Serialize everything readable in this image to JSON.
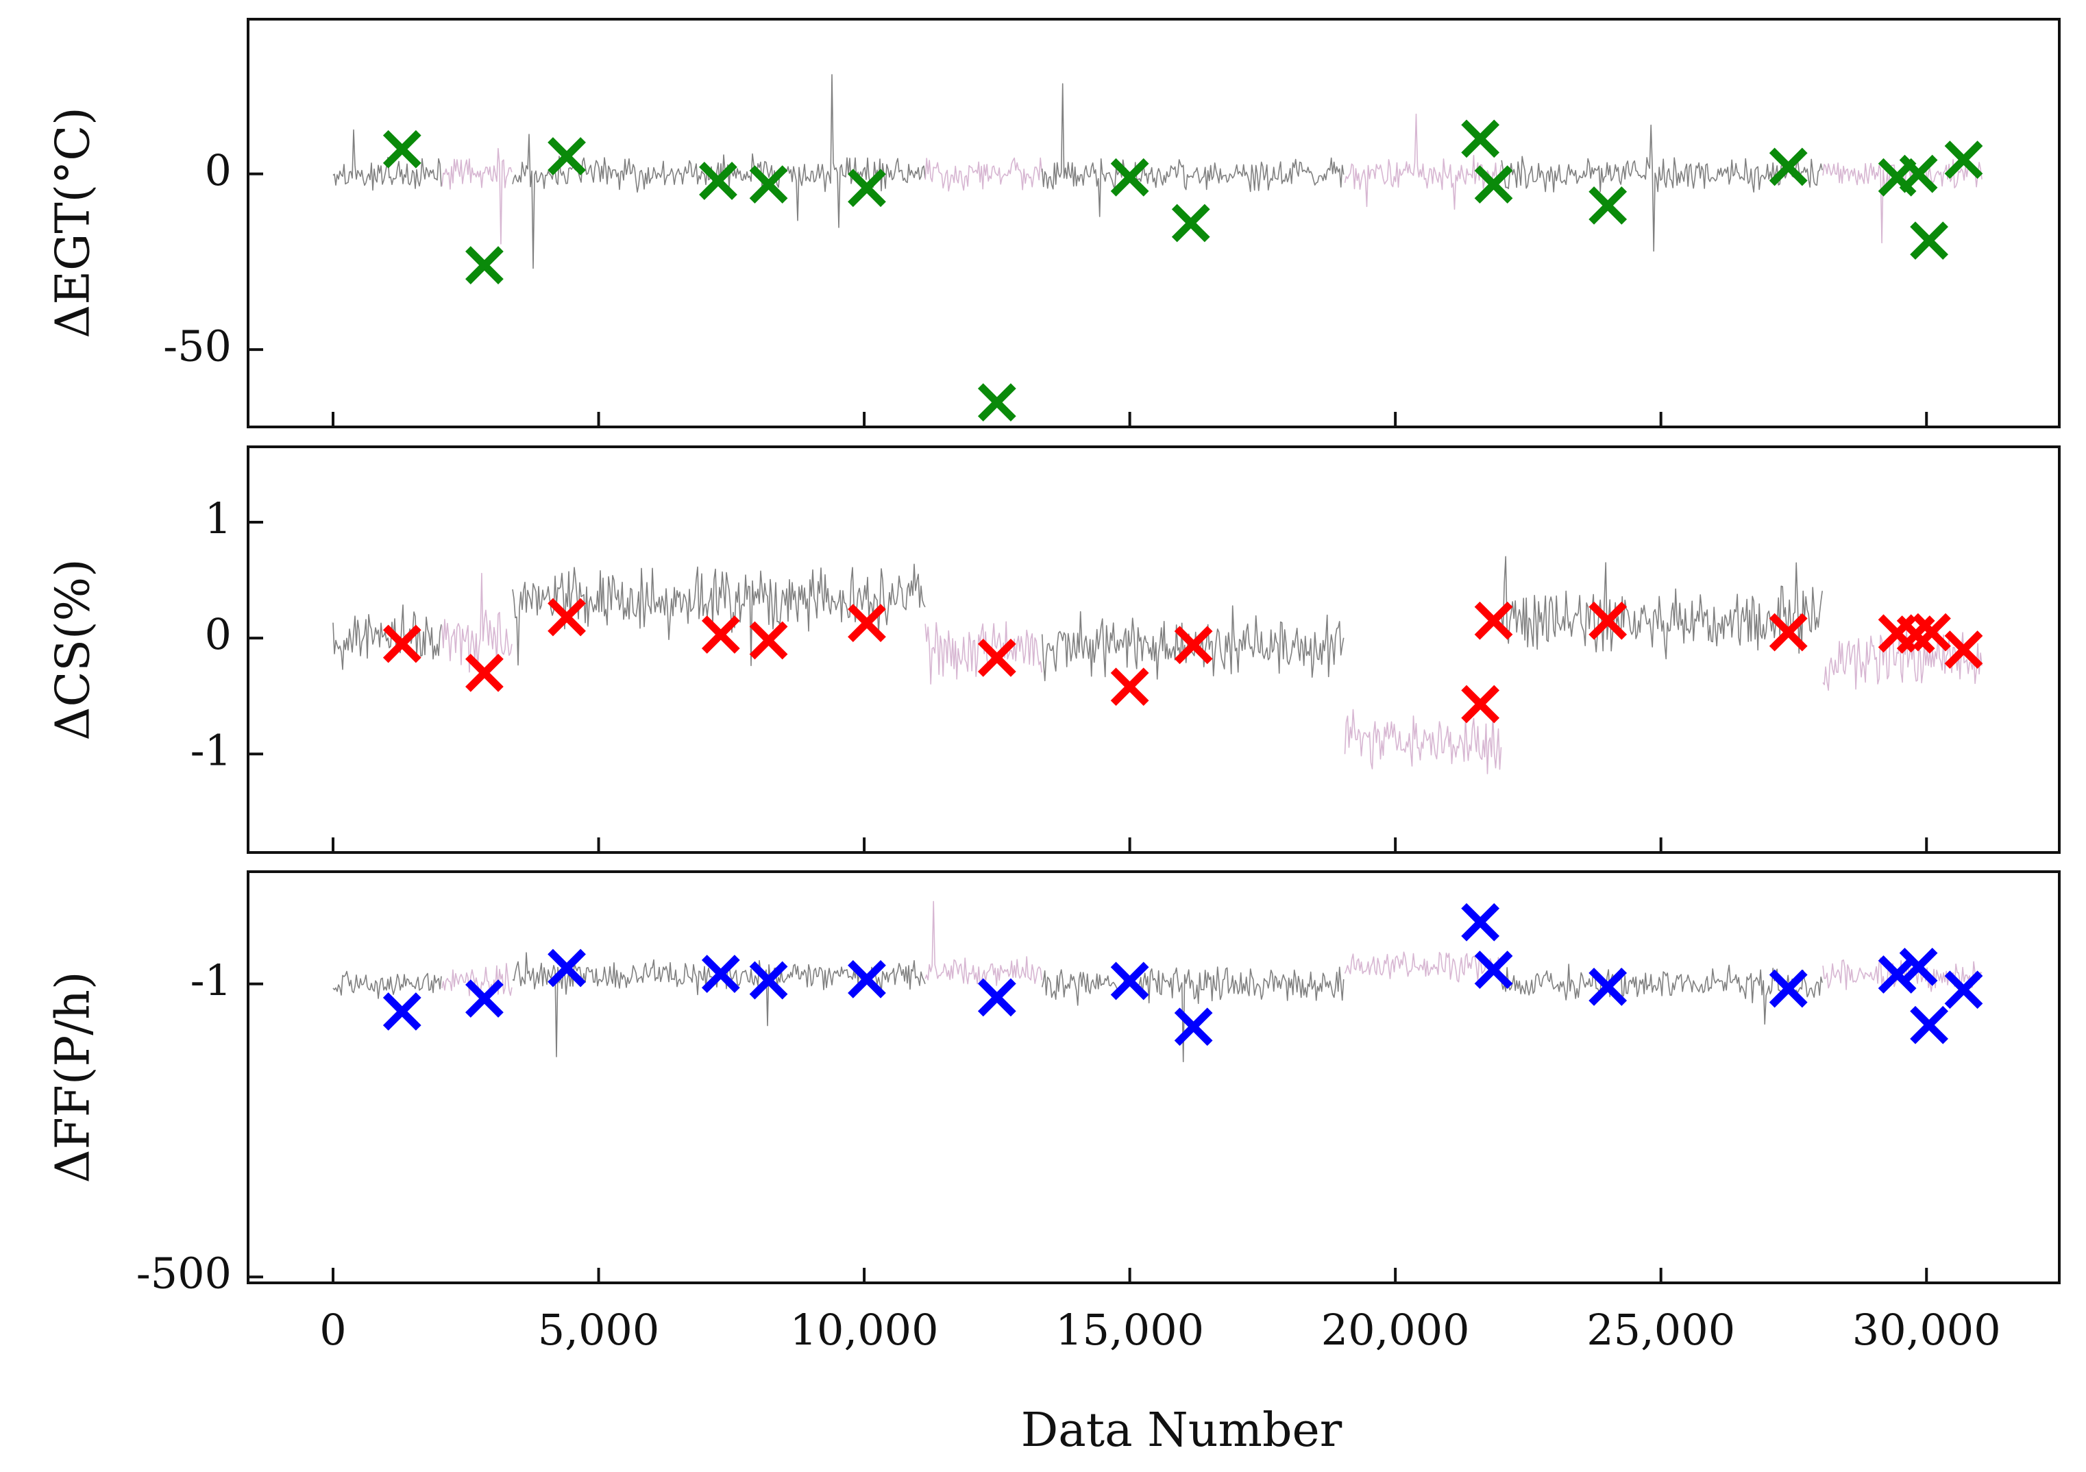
{
  "chart_data": [
    {
      "type": "line",
      "panel": "top",
      "ylabel": "ΔEGT(°C)",
      "xlim": [
        -1600,
        32500
      ],
      "ylim": [
        -72,
        44
      ],
      "yticks": [
        0,
        -50
      ],
      "ytick_labels": [
        "0",
        "-50"
      ],
      "xticks": [
        0,
        5000,
        10000,
        15000,
        20000,
        25000,
        30000
      ],
      "grid": false,
      "series": [
        {
          "name": "residuals (grey)",
          "color": "#808080",
          "style": "noisy-line"
        },
        {
          "name": "residuals (pink)",
          "color": "#d7b6d2",
          "style": "noisy-line"
        },
        {
          "name": "markers",
          "color": "#0a8a0a",
          "style": "x-marker",
          "points": [
            [
              1300,
              7
            ],
            [
              2850,
              -26
            ],
            [
              4400,
              5
            ],
            [
              7250,
              -2
            ],
            [
              8200,
              -3
            ],
            [
              10050,
              -4
            ],
            [
              12500,
              -65
            ],
            [
              15000,
              -1
            ],
            [
              16150,
              -14
            ],
            [
              21600,
              10
            ],
            [
              21850,
              -3
            ],
            [
              24000,
              -9
            ],
            [
              27400,
              2
            ],
            [
              29450,
              -1
            ],
            [
              29850,
              0
            ],
            [
              30050,
              -19
            ],
            [
              30700,
              4
            ]
          ]
        }
      ]
    },
    {
      "type": "line",
      "panel": "middle",
      "ylabel": "ΔCS(%)",
      "xlim": [
        -1600,
        32500
      ],
      "ylim": [
        -1.85,
        1.65
      ],
      "yticks": [
        1,
        0,
        -1
      ],
      "ytick_labels": [
        "1",
        "0",
        "-1"
      ],
      "xticks": [
        0,
        5000,
        10000,
        15000,
        20000,
        25000,
        30000
      ],
      "grid": false,
      "series": [
        {
          "name": "residuals (grey)",
          "color": "#808080",
          "style": "noisy-line"
        },
        {
          "name": "residuals (pink)",
          "color": "#d7b6d2",
          "style": "noisy-line"
        },
        {
          "name": "markers",
          "color": "#ff0000",
          "style": "x-marker",
          "points": [
            [
              1300,
              -0.05
            ],
            [
              2850,
              -0.3
            ],
            [
              4400,
              0.18
            ],
            [
              7300,
              0.03
            ],
            [
              8200,
              -0.02
            ],
            [
              10050,
              0.13
            ],
            [
              12500,
              -0.17
            ],
            [
              15000,
              -0.42
            ],
            [
              16200,
              -0.06
            ],
            [
              21600,
              -0.57
            ],
            [
              21850,
              0.15
            ],
            [
              24000,
              0.15
            ],
            [
              27400,
              0.05
            ],
            [
              29450,
              0.04
            ],
            [
              29800,
              0.03
            ],
            [
              30100,
              0.05
            ],
            [
              30700,
              -0.1
            ]
          ]
        }
      ]
    },
    {
      "type": "line",
      "panel": "bottom",
      "ylabel": "ΔFF(P/h)",
      "xlabel": "Data Number",
      "xlim": [
        -1600,
        32500
      ],
      "ylim": [
        -510,
        190
      ],
      "yticks": [
        -1,
        -500
      ],
      "ytick_labels": [
        "-1",
        "-500"
      ],
      "xticks": [
        0,
        5000,
        10000,
        15000,
        20000,
        25000,
        30000
      ],
      "xtick_labels": [
        "0",
        "5,000",
        "10,000",
        "15,000",
        "20,000",
        "25,000",
        "30,000"
      ],
      "grid": false,
      "series": [
        {
          "name": "residuals (grey)",
          "color": "#808080",
          "style": "noisy-line"
        },
        {
          "name": "residuals (pink)",
          "color": "#d7b6d2",
          "style": "noisy-line"
        },
        {
          "name": "markers",
          "color": "#0000ff",
          "style": "x-marker",
          "points": [
            [
              1300,
              -48
            ],
            [
              2850,
              -26
            ],
            [
              4400,
              26
            ],
            [
              7300,
              16
            ],
            [
              8200,
              5
            ],
            [
              10050,
              7
            ],
            [
              12500,
              -24
            ],
            [
              15000,
              4
            ],
            [
              16200,
              -74
            ],
            [
              21600,
              104
            ],
            [
              21850,
              23
            ],
            [
              24000,
              -6
            ],
            [
              27400,
              -9
            ],
            [
              29450,
              15
            ],
            [
              29850,
              28
            ],
            [
              30050,
              -71
            ],
            [
              30700,
              -11
            ]
          ]
        }
      ]
    }
  ],
  "segments": [
    {
      "x0": 0,
      "x1": 2050,
      "color": "#808080"
    },
    {
      "x0": 2050,
      "x1": 3380,
      "color": "#d7b6d2"
    },
    {
      "x0": 3380,
      "x1": 11150,
      "color": "#808080"
    },
    {
      "x0": 11150,
      "x1": 13350,
      "color": "#d7b6d2"
    },
    {
      "x0": 13350,
      "x1": 19050,
      "color": "#808080"
    },
    {
      "x0": 19050,
      "x1": 22000,
      "color": "#d7b6d2"
    },
    {
      "x0": 22000,
      "x1": 28050,
      "color": "#808080"
    },
    {
      "x0": 28050,
      "x1": 31050,
      "color": "#d7b6d2"
    }
  ]
}
